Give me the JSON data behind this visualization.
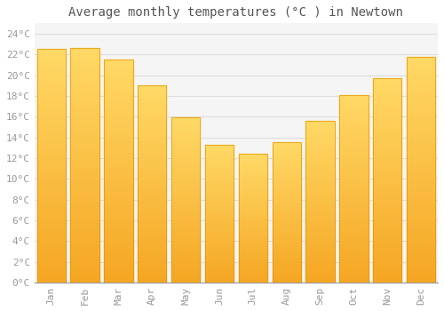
{
  "months": [
    "Jan",
    "Feb",
    "Mar",
    "Apr",
    "May",
    "Jun",
    "Jul",
    "Aug",
    "Sep",
    "Oct",
    "Nov",
    "Dec"
  ],
  "values": [
    22.5,
    22.6,
    21.5,
    19.0,
    15.9,
    13.3,
    12.4,
    13.5,
    15.6,
    18.1,
    19.7,
    21.8
  ],
  "bar_color_bottom": "#F5A623",
  "bar_color_top": "#FFD966",
  "bar_color_edge": "#E59400",
  "title": "Average monthly temperatures (°C ) in Newtown",
  "ylim": [
    0,
    25
  ],
  "yticks": [
    0,
    2,
    4,
    6,
    8,
    10,
    12,
    14,
    16,
    18,
    20,
    22,
    24
  ],
  "ytick_labels": [
    "0°C",
    "2°C",
    "4°C",
    "6°C",
    "8°C",
    "10°C",
    "12°C",
    "14°C",
    "16°C",
    "18°C",
    "20°C",
    "22°C",
    "24°C"
  ],
  "bg_color": "#FFFFFF",
  "plot_bg_color": "#F5F5F5",
  "grid_color": "#DDDDDD",
  "title_fontsize": 10,
  "tick_fontsize": 8,
  "tick_color": "#999999",
  "title_color": "#555555",
  "font_family": "monospace",
  "bar_width": 0.85
}
